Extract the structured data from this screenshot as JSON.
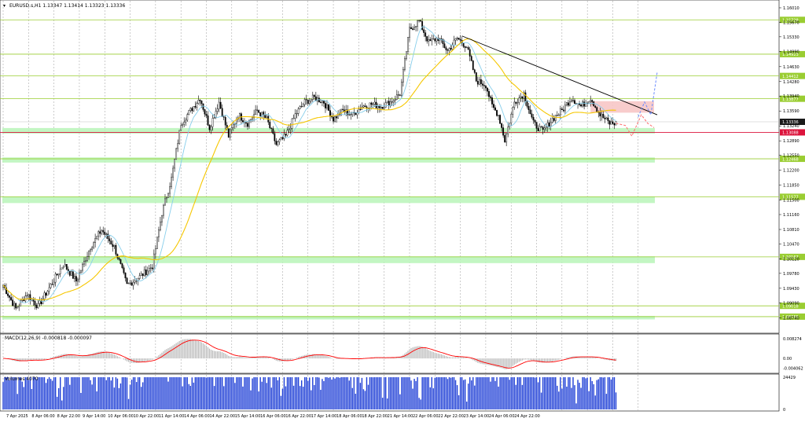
{
  "header": {
    "symbol_line": "EURUSD.s,H1 1.13347 1.13414 1.13323 1.13336"
  },
  "colors": {
    "up": "#000000",
    "down": "#000000",
    "body_up": "#ffffff",
    "ma_fast": "#87ceeb",
    "ma_slow": "#f6c700",
    "level": "#9acd32",
    "zone": "#b8f4b8",
    "sell_zone": "#f7c6c6",
    "current_line": "#dc143c",
    "trend": "#000000",
    "macd_hist": "#b8b8b8",
    "macd_signal": "#ff0000",
    "volume": "#1f3fd6",
    "projection_down": "#ff6b6b",
    "projection_up": "#6b8bff"
  },
  "chart_data": {
    "type": "candlestick",
    "symbol": "EURUSD.s",
    "timeframe": "H1",
    "ohlc_legend": {
      "open": 1.13347,
      "high": 1.13414,
      "low": 1.13323,
      "close": 1.13336
    },
    "ylim": [
      1.0845,
      1.1612
    ],
    "price_ticks": [
      "1.16010",
      "1.15670",
      "1.15330",
      "1.14990",
      "1.14630",
      "1.14280",
      "1.13940",
      "1.13590",
      "1.13240",
      "1.12890",
      "1.12550",
      "1.12200",
      "1.11850",
      "1.11500",
      "1.11160",
      "1.10810",
      "1.10470",
      "1.10120",
      "1.09780",
      "1.09430",
      "1.09090",
      "1.08740"
    ],
    "levels": [
      {
        "label": "1.15728",
        "value": 1.15728
      },
      {
        "label": "1.14923",
        "value": 1.14923
      },
      {
        "label": "1.14412",
        "value": 1.14412
      },
      {
        "label": "1.13877",
        "value": 1.13877
      },
      {
        "label": "1.12468",
        "value": 1.12468
      },
      {
        "label": "1.11577",
        "value": 1.11577
      },
      {
        "label": "1.10167",
        "value": 1.10167
      },
      {
        "label": "1.09018",
        "value": 1.09018
      },
      {
        "label": "1.08765",
        "value": 1.08765
      }
    ],
    "current_price": {
      "label": "1.13336",
      "value": 1.13336
    },
    "bid_line": {
      "label": "1.13088",
      "value": 1.13088
    },
    "x_labels": [
      "7 Apr 2025",
      "8 Apr 06:00",
      "8 Apr 22:00",
      "9 Apr 14:00",
      "10 Apr 06:00",
      "10 Apr 22:00",
      "11 Apr 14:00",
      "14 Apr 06:00",
      "14 Apr 22:00",
      "15 Apr 14:00",
      "16 Apr 06:00",
      "16 Apr 22:00",
      "17 Apr 14:00",
      "18 Apr 06:00",
      "18 Apr 22:00",
      "21 Apr 14:00",
      "22 Apr 06:00",
      "22 Apr 22:00",
      "23 Apr 14:00",
      "24 Apr 06:00",
      "24 Apr 22:00"
    ],
    "anchors": [
      [
        0,
        1.095
      ],
      [
        8,
        1.0895
      ],
      [
        15,
        1.093
      ],
      [
        22,
        1.09
      ],
      [
        30,
        1.095
      ],
      [
        38,
        1.1
      ],
      [
        46,
        1.096
      ],
      [
        55,
        1.104
      ],
      [
        62,
        1.108
      ],
      [
        70,
        1.104
      ],
      [
        78,
        1.095
      ],
      [
        86,
        1.097
      ],
      [
        94,
        1.0995
      ],
      [
        100,
        1.112
      ],
      [
        106,
        1.12
      ],
      [
        112,
        1.133
      ],
      [
        118,
        1.136
      ],
      [
        124,
        1.139
      ],
      [
        130,
        1.132
      ],
      [
        136,
        1.138
      ],
      [
        142,
        1.13
      ],
      [
        148,
        1.135
      ],
      [
        154,
        1.133
      ],
      [
        160,
        1.136
      ],
      [
        166,
        1.134
      ],
      [
        172,
        1.128
      ],
      [
        178,
        1.13
      ],
      [
        184,
        1.135
      ],
      [
        190,
        1.138
      ],
      [
        196,
        1.139
      ],
      [
        202,
        1.138
      ],
      [
        208,
        1.134
      ],
      [
        214,
        1.136
      ],
      [
        220,
        1.135
      ],
      [
        226,
        1.137
      ],
      [
        232,
        1.1375
      ],
      [
        238,
        1.137
      ],
      [
        244,
        1.138
      ],
      [
        250,
        1.14
      ],
      [
        256,
        1.155
      ],
      [
        262,
        1.157
      ],
      [
        268,
        1.152
      ],
      [
        274,
        1.153
      ],
      [
        280,
        1.15
      ],
      [
        286,
        1.153
      ],
      [
        292,
        1.151
      ],
      [
        298,
        1.143
      ],
      [
        304,
        1.142
      ],
      [
        308,
        1.137
      ],
      [
        312,
        1.135
      ],
      [
        316,
        1.129
      ],
      [
        322,
        1.138
      ],
      [
        328,
        1.14
      ],
      [
        334,
        1.133
      ],
      [
        340,
        1.131
      ],
      [
        346,
        1.134
      ],
      [
        352,
        1.136
      ],
      [
        358,
        1.139
      ],
      [
        364,
        1.137
      ],
      [
        370,
        1.139
      ],
      [
        376,
        1.135
      ],
      [
        382,
        1.133
      ],
      [
        386,
        1.133
      ]
    ],
    "n_bars": 387,
    "ma_fast_period": 10,
    "ma_slow_period": 40,
    "projection": [
      {
        "bar": 386,
        "value": 1.133
      },
      {
        "bar": 392,
        "value": 1.1325
      },
      {
        "bar": 396,
        "value": 1.13
      },
      {
        "bar": 402,
        "value": 1.135
      },
      {
        "bar": 406,
        "value": 1.133
      },
      {
        "bar": 410,
        "value": 1.132
      }
    ],
    "projection_alt": [
      {
        "bar": 400,
        "value": 1.1345
      },
      {
        "bar": 404,
        "value": 1.138
      },
      {
        "bar": 408,
        "value": 1.135
      },
      {
        "bar": 412,
        "value": 1.145
      }
    ],
    "trendline": [
      {
        "bar": 289,
        "value": 1.1535
      },
      {
        "bar": 412,
        "value": 1.135
      }
    ],
    "macd": {
      "label": "MACD(12,26,9) -0.000818 -0.000097",
      "ticks": [
        "0.008274",
        "0.00",
        "-0.004062"
      ],
      "ylim": [
        -0.0052,
        0.0092
      ]
    },
    "volumes": {
      "label": "Volumes 4070",
      "ticks": [
        "24429",
        "0"
      ],
      "ymax": 24429
    }
  }
}
